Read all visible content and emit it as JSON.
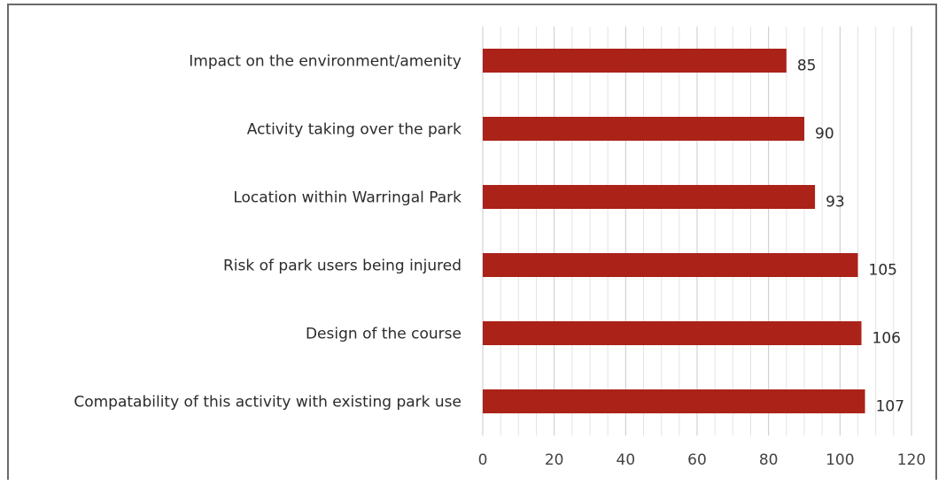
{
  "chart_data": {
    "type": "bar",
    "orientation": "horizontal",
    "categories": [
      "Impact on the environment/amenity",
      "Activity taking over the park",
      "Location within Warringal Park",
      "Risk of park users being injured",
      "Design of the course",
      "Compatability of this activity with existing park use"
    ],
    "values": [
      85,
      90,
      93,
      105,
      106,
      107
    ],
    "value_labels": [
      "85",
      "90",
      "93",
      "105",
      "106",
      "107"
    ],
    "xlim": [
      0,
      120
    ],
    "x_ticks": [
      0,
      20,
      40,
      60,
      80,
      100,
      120
    ],
    "x_tick_labels": [
      "0",
      "20",
      "40",
      "60",
      "80",
      "100",
      "120"
    ],
    "minor_grid_step": 5,
    "grid": true,
    "bar_color": "#ab2218",
    "title": "",
    "xlabel": "",
    "ylabel": ""
  }
}
